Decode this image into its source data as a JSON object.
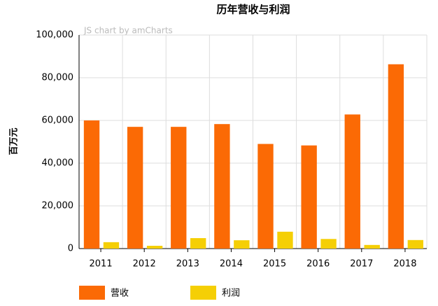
{
  "chart_data": {
    "type": "bar",
    "title": "历年营收与利润",
    "y_label": "百万元",
    "watermark": "JS chart by amCharts",
    "categories": [
      "2011",
      "2012",
      "2013",
      "2014",
      "2015",
      "2016",
      "2017",
      "2018"
    ],
    "series": [
      {
        "name": "营收",
        "color": "#fb6a05",
        "values": [
          60000,
          57000,
          57000,
          58300,
          49000,
          48300,
          62800,
          86300
        ]
      },
      {
        "name": "利润",
        "color": "#f5cf05",
        "values": [
          3000,
          1300,
          4900,
          3900,
          7900,
          4500,
          1700,
          4000
        ]
      }
    ],
    "ylim": [
      0,
      100000
    ],
    "yticks": [
      0,
      {
        "value": 20000,
        "label": "20,000"
      },
      {
        "value": 40000,
        "label": "40,000"
      },
      {
        "value": 60000,
        "label": "60,000"
      },
      {
        "value": 80000,
        "label": "80,000"
      },
      {
        "value": 100000,
        "label": "100,000"
      }
    ],
    "grid": true,
    "legend": "bottom"
  }
}
